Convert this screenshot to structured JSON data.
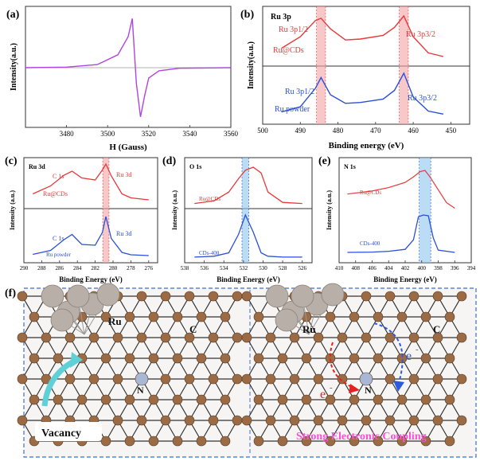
{
  "panels": {
    "a": {
      "label": "(a)"
    },
    "b": {
      "label": "(b)"
    },
    "c": {
      "label": "(c)"
    },
    "d": {
      "label": "(d)"
    },
    "e": {
      "label": "(e)"
    },
    "f": {
      "label": "(f)"
    }
  },
  "colors": {
    "red": "#e8383a",
    "blue": "#2b4fd8",
    "purple": "#b044e0",
    "highlight_red": "#f3a3a3",
    "highlight_blue": "#8cc4ec",
    "carbon": "#9a6b45",
    "ru": "#b8b0a8",
    "nitrogen": "#a9b7d6"
  },
  "chart_data": [
    {
      "id": "a",
      "type": "line",
      "xlabel": "H (Gauss)",
      "ylabel": "Intensity(a.u.)",
      "xlim": [
        3460,
        3560
      ],
      "xticks": [
        "3480",
        "3500",
        "3520",
        "3540",
        "3560"
      ],
      "series": [
        {
          "x": [
            3460,
            3480,
            3495,
            3505,
            3510,
            3512,
            3514,
            3516,
            3518,
            3520,
            3525,
            3535,
            3560
          ],
          "y": [
            0,
            0.01,
            0.06,
            0.25,
            0.6,
            0.95,
            -0.3,
            -0.95,
            -0.55,
            -0.2,
            -0.06,
            -0.01,
            0
          ]
        }
      ]
    },
    {
      "id": "b",
      "type": "line",
      "xlabel": "Binding energy (eV)",
      "ylabel": "Intensity(a.u.)",
      "corner_label": "Ru 3p",
      "xlim": [
        500,
        445
      ],
      "xticks": [
        "500",
        "490",
        "480",
        "470",
        "460",
        "450"
      ],
      "highlights": [
        484.5,
        462.5
      ],
      "series": [
        {
          "name": "Ru@CDs",
          "peaks": [
            "Ru 3p1/2",
            "Ru 3p3/2"
          ],
          "x": [
            495,
            490,
            486,
            484.5,
            482,
            478,
            474,
            468,
            465,
            462.5,
            460,
            456,
            452
          ],
          "y": [
            0.3,
            0.55,
            0.9,
            0.95,
            0.72,
            0.48,
            0.5,
            0.58,
            0.75,
            1.0,
            0.55,
            0.2,
            0.12
          ]
        },
        {
          "name": "Ru powder",
          "peaks": [
            "Ru 3p1/2",
            "Ru 3p3/2"
          ],
          "x": [
            495,
            490,
            486,
            484.5,
            482,
            478,
            474,
            468,
            465,
            462.5,
            460,
            456,
            452
          ],
          "y": [
            0.1,
            0.22,
            0.65,
            0.9,
            0.5,
            0.3,
            0.32,
            0.4,
            0.6,
            1.0,
            0.45,
            0.12,
            0.05
          ]
        }
      ]
    },
    {
      "id": "c",
      "type": "line",
      "xlabel": "Binding Energy (eV)",
      "ylabel": "Intensity (a.u.)",
      "corner_label": "Ru 3d",
      "xlim": [
        290,
        275
      ],
      "xticks": [
        "290",
        "288",
        "286",
        "284",
        "282",
        "280",
        "278",
        "276"
      ],
      "highlight": 280.8,
      "series": [
        {
          "name": "Ru@CDs",
          "peaks": [
            "C 1s",
            "Ru 3d"
          ],
          "x": [
            289,
            287,
            285.5,
            284.6,
            283.5,
            282,
            281.2,
            280.8,
            280.2,
            279,
            278,
            276
          ],
          "y": [
            0.25,
            0.45,
            0.72,
            0.82,
            0.65,
            0.6,
            0.85,
            1.0,
            0.7,
            0.25,
            0.15,
            0.1
          ]
        },
        {
          "name": "Ru powder",
          "peaks": [
            "C 1s",
            "Ru 3d"
          ],
          "x": [
            289,
            287,
            285.5,
            284.6,
            283.5,
            282,
            281.2,
            280.8,
            280.2,
            279,
            278,
            276
          ],
          "y": [
            0.05,
            0.15,
            0.42,
            0.55,
            0.3,
            0.28,
            0.6,
            1.0,
            0.45,
            0.1,
            0.04,
            0.02
          ]
        }
      ]
    },
    {
      "id": "d",
      "type": "line",
      "xlabel": "Binding Energy (eV)",
      "ylabel": "Intensity (a.u.)",
      "corner_label": "O 1s",
      "xlim": [
        538,
        525
      ],
      "xticks": [
        "538",
        "536",
        "534",
        "532",
        "530",
        "528",
        "526"
      ],
      "highlight": 531.8,
      "series": [
        {
          "name": "Ru@CDs",
          "x": [
            537,
            535,
            533.5,
            532.5,
            531.8,
            531,
            530.2,
            529.5,
            528,
            526
          ],
          "y": [
            0.05,
            0.12,
            0.35,
            0.7,
            0.92,
            1.0,
            0.85,
            0.35,
            0.08,
            0.05
          ]
        },
        {
          "name": "CDs-400",
          "x": [
            537,
            535,
            533.5,
            532.5,
            531.8,
            531,
            530.2,
            529.5,
            528,
            526
          ],
          "y": [
            0.02,
            0.04,
            0.12,
            0.55,
            1.0,
            0.6,
            0.12,
            0.04,
            0.02,
            0.02
          ]
        }
      ]
    },
    {
      "id": "e",
      "type": "line",
      "xlabel": "Binding Energy (eV)",
      "ylabel": "Intensity (a.u.)",
      "corner_label": "N 1s",
      "xlim": [
        410,
        394
      ],
      "xticks": [
        "410",
        "408",
        "406",
        "404",
        "402",
        "400",
        "398",
        "396",
        "394"
      ],
      "highlight": 399.6,
      "series": [
        {
          "name": "Ru@CDs",
          "x": [
            409,
            406,
            404,
            402,
            401,
            400.2,
            399.6,
            399,
            398,
            397,
            396
          ],
          "y": [
            0.45,
            0.52,
            0.6,
            0.72,
            0.85,
            0.97,
            1.0,
            0.85,
            0.55,
            0.25,
            0.12
          ]
        },
        {
          "name": "CDs-400",
          "x": [
            409,
            406,
            404,
            402,
            401,
            400.4,
            399.8,
            399.2,
            398.6,
            398,
            396
          ],
          "y": [
            0.02,
            0.03,
            0.05,
            0.1,
            0.35,
            0.95,
            1.0,
            0.98,
            0.4,
            0.08,
            0.02
          ]
        }
      ]
    }
  ],
  "panel_f": {
    "labels": {
      "ru_left": "Ru",
      "n_left": "N",
      "vacancy": "Vacancy",
      "ru_right": "Ru",
      "n_right": "N",
      "c_right": "C",
      "c_left": "C",
      "e_left": "e",
      "e_right": "e",
      "e_sup": "-",
      "coupling": "Strong Electronic Coupling"
    }
  }
}
